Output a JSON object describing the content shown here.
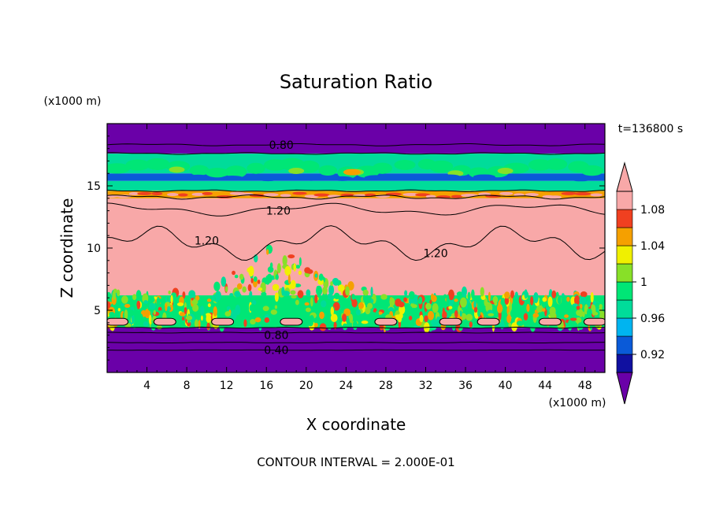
{
  "chart_data": {
    "type": "heatmap",
    "title": "Saturation Ratio",
    "xlabel": "X coordinate",
    "ylabel": "Z coordinate",
    "x_unit": "(x1000 m)",
    "y_unit": "(x1000 m)",
    "time_label": "t=136800 s",
    "footer": "CONTOUR INTERVAL = 2.000E-01",
    "xlim": [
      0,
      50
    ],
    "ylim": [
      0,
      20
    ],
    "x_ticks": [
      4,
      8,
      12,
      16,
      20,
      24,
      28,
      32,
      36,
      40,
      44,
      48
    ],
    "y_ticks": [
      5,
      10,
      15
    ],
    "colorbar": {
      "ticks": [
        "0.92",
        "0.96",
        "1",
        "1.04",
        "1.08"
      ],
      "tick_values": [
        0.92,
        0.96,
        1.0,
        1.04,
        1.08
      ],
      "levels": [
        0.9,
        0.92,
        0.94,
        0.96,
        0.98,
        1.0,
        1.02,
        1.04,
        1.06,
        1.08,
        1.1
      ],
      "colors": [
        "#6a00a8",
        "#1010a0",
        "#0a5ad8",
        "#00b4f0",
        "#00dc9a",
        "#00e676",
        "#88e028",
        "#f0f000",
        "#f5a000",
        "#f04020",
        "#f8a8a8",
        "#f8a8a8"
      ]
    },
    "contour_labels": [
      {
        "text": "0.80",
        "x": 17.5,
        "z": 18.3
      },
      {
        "text": "1.20",
        "x": 17.2,
        "z": 13.0
      },
      {
        "text": "1.20",
        "x": 10.0,
        "z": 10.6
      },
      {
        "text": "1.20",
        "x": 33.0,
        "z": 9.6
      },
      {
        "text": "0.80",
        "x": 17.0,
        "z": 3.0
      },
      {
        "text": "0.40",
        "x": 17.0,
        "z": 1.8
      }
    ],
    "bands": [
      {
        "z0": 0,
        "z1": 3.2,
        "value": 0.6
      },
      {
        "z0": 3.2,
        "z1": 3.6,
        "value": 0.85
      },
      {
        "z0": 3.6,
        "z1": 6.2,
        "value": 0.99
      },
      {
        "z0": 6.2,
        "z1": 14.0,
        "value": 1.15
      },
      {
        "z0": 14.0,
        "z1": 14.6,
        "value": 1.05
      },
      {
        "z0": 14.6,
        "z1": 15.4,
        "value": 0.97
      },
      {
        "z0": 15.4,
        "z1": 16.0,
        "value": 0.92
      },
      {
        "z0": 16.0,
        "z1": 17.6,
        "value": 0.96
      },
      {
        "z0": 17.6,
        "z1": 20.0,
        "value": 0.75
      }
    ]
  }
}
